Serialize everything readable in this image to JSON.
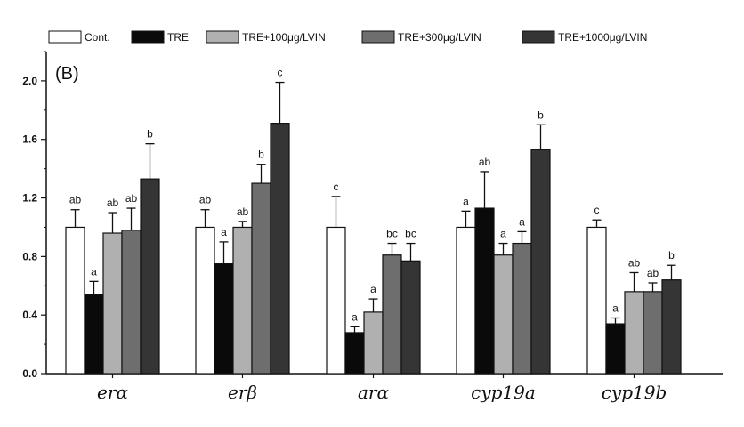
{
  "chart_data": {
    "type": "bar",
    "panel_label": "(B)",
    "categories": [
      "erα",
      "erβ",
      "arα",
      "cyp19a",
      "cyp19b"
    ],
    "ylim": [
      0.0,
      2.2
    ],
    "yticks": [
      "0.0",
      "0.4",
      "0.8",
      "1.2",
      "1.6",
      "2.0"
    ],
    "ytick_values": [
      0.0,
      0.4,
      0.8,
      1.2,
      1.6,
      2.0
    ],
    "legend_position": "top",
    "grid": false,
    "series": [
      {
        "name": "Cont.",
        "color": "#ffffff",
        "values": [
          1.0,
          1.0,
          1.0,
          1.0,
          1.0
        ],
        "errors": [
          0.12,
          0.12,
          0.21,
          0.11,
          0.05
        ],
        "labels": [
          "ab",
          "ab",
          "c",
          "a",
          "c"
        ]
      },
      {
        "name": "TRE",
        "color": "#0a0a0a",
        "values": [
          0.54,
          0.75,
          0.28,
          1.13,
          0.34
        ],
        "errors": [
          0.09,
          0.15,
          0.04,
          0.25,
          0.04
        ],
        "labels": [
          "a",
          "a",
          "a",
          "ab",
          "a"
        ]
      },
      {
        "name": "TRE+100μg/LVIN",
        "color": "#b0b0b0",
        "values": [
          0.96,
          1.0,
          0.42,
          0.81,
          0.56
        ],
        "errors": [
          0.14,
          0.04,
          0.09,
          0.08,
          0.13
        ],
        "labels": [
          "ab",
          "ab",
          "a",
          "a",
          "ab"
        ]
      },
      {
        "name": "TRE+300μg/LVIN",
        "color": "#6e6e6e",
        "values": [
          0.98,
          1.3,
          0.81,
          0.89,
          0.56
        ],
        "errors": [
          0.15,
          0.13,
          0.08,
          0.08,
          0.06
        ],
        "labels": [
          "ab",
          "b",
          "bc",
          "a",
          "ab"
        ]
      },
      {
        "name": "TRE+1000μg/LVIN",
        "color": "#353535",
        "values": [
          1.33,
          1.71,
          0.77,
          1.53,
          0.64
        ],
        "errors": [
          0.24,
          0.28,
          0.12,
          0.17,
          0.1
        ],
        "labels": [
          "b",
          "c",
          "bc",
          "b",
          "b"
        ]
      }
    ]
  }
}
